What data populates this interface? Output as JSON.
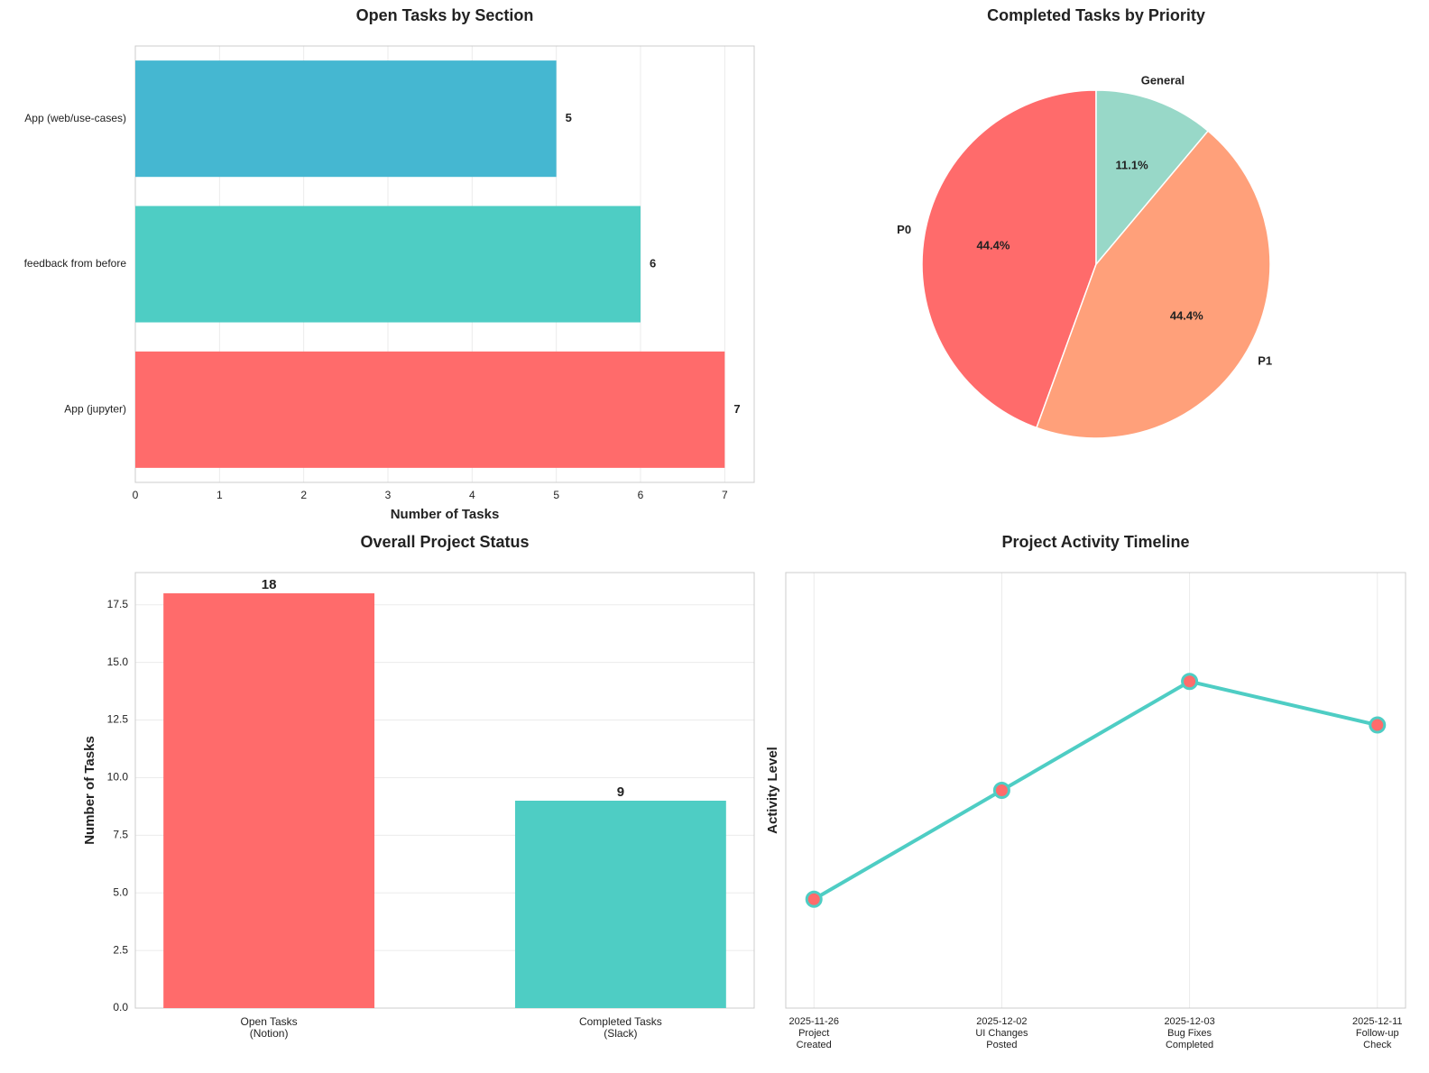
{
  "chart_data": [
    {
      "type": "hbar",
      "title": "Open Tasks by Section",
      "xlabel": "Number of Tasks",
      "categories": [
        "App (web/use-cases)",
        "feedback from before",
        "App (jupyter)"
      ],
      "values": [
        5,
        6,
        7
      ],
      "colors": [
        "#45B7D1",
        "#4ECDC4",
        "#FF6B6B"
      ],
      "xlim": [
        0,
        7.35
      ],
      "xticks": [
        0,
        1,
        2,
        3,
        4,
        5,
        6,
        7
      ],
      "grid": true
    },
    {
      "type": "pie",
      "title": "Completed Tasks by Priority",
      "categories": [
        "P0",
        "P1",
        "General"
      ],
      "values": [
        44.4,
        44.4,
        11.1
      ],
      "value_labels": [
        "44.4%",
        "44.4%",
        "11.1%"
      ],
      "colors": [
        "#FF6B6B",
        "#FFA07A",
        "#98D8C8"
      ]
    },
    {
      "type": "bar",
      "title": "Overall Project Status",
      "ylabel": "Number of Tasks",
      "categories": [
        "Open Tasks\n(Notion)",
        "Completed Tasks\n(Slack)"
      ],
      "values": [
        18,
        9
      ],
      "colors": [
        "#FF6B6B",
        "#4ECDC4"
      ],
      "ylim": [
        0,
        18.9
      ],
      "yticks": [
        {
          "value": 0,
          "label": "0.0"
        },
        2.5,
        {
          "value": 5,
          "label": "5.0"
        },
        7.5,
        {
          "value": 10,
          "label": "10.0"
        },
        12.5,
        {
          "value": 15,
          "label": "15.0"
        },
        17.5
      ],
      "grid": true
    },
    {
      "type": "line",
      "title": "Project Activity Timeline",
      "ylabel": "Activity Level",
      "categories": [
        "2025-11-26\nProject\nCreated",
        "2025-12-02\nUI Changes\nPosted",
        "2025-12-03\nBug Fixes\nCompleted",
        "2025-12-11\nFollow-up\nCheck"
      ],
      "values": [
        1,
        2,
        3,
        2.6
      ],
      "color": "#4ECDC4",
      "marker_color": "#FF6B6B",
      "ylim": [
        0,
        4
      ],
      "grid": true
    }
  ]
}
